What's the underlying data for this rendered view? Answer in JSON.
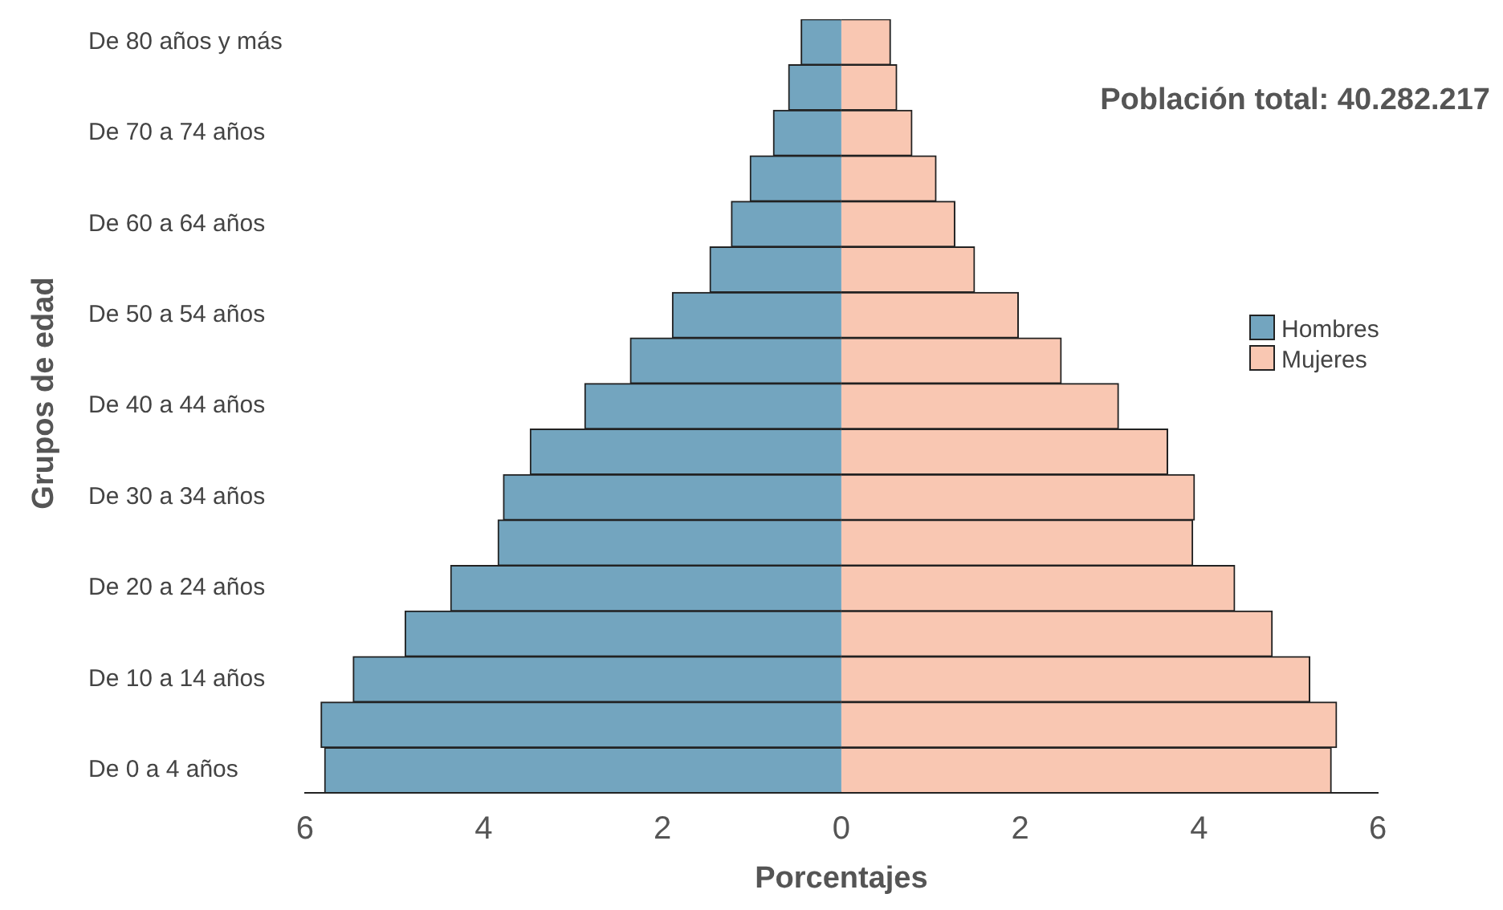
{
  "chart_data": {
    "type": "bar",
    "orientation": "horizontal",
    "stacked": true,
    "xlabel": "Porcentajes",
    "ylabel": "Grupos de edad",
    "annotations": [
      "Población total: 40.282.217"
    ],
    "categories": [
      "De 80 años y más",
      null,
      "De 70 a 74 años",
      null,
      "De 60 a 64 años",
      null,
      "De 50 a 54 años",
      null,
      "De 40 a 44 años",
      null,
      "De 30 a 34 años",
      null,
      "De 20 a 24 años",
      null,
      "De 10 a 14 años",
      null,
      "De 0 a 4 años"
    ],
    "series": [
      {
        "name": "Hombres",
        "color": "#73a5bf",
        "values": [
          -0.45,
          -0.59,
          -0.76,
          -1.02,
          -1.23,
          -1.47,
          -1.89,
          -2.36,
          -2.87,
          -3.48,
          -3.78,
          -3.84,
          -4.37,
          -4.88,
          -5.46,
          -5.82,
          -5.78
        ]
      },
      {
        "name": "Mujeres",
        "color": "#f9c7b2",
        "values": [
          0.55,
          0.62,
          0.79,
          1.06,
          1.27,
          1.49,
          1.98,
          2.46,
          3.1,
          3.65,
          3.95,
          3.93,
          4.4,
          4.82,
          5.24,
          5.54,
          5.48
        ]
      }
    ],
    "xlim": [
      -6,
      6
    ],
    "xticks": [
      {
        "value": -6,
        "label": "6"
      },
      {
        "value": -4,
        "label": "4"
      },
      {
        "value": -2,
        "label": "2"
      },
      0,
      2,
      4,
      6
    ],
    "grid": false,
    "legend": "right"
  }
}
